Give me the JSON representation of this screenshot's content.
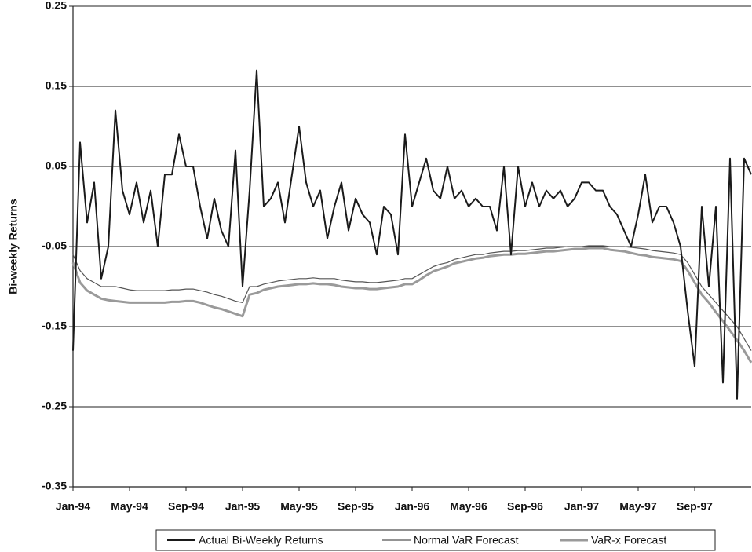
{
  "chart_data": {
    "type": "line",
    "y_label": "Bi-weekly Returns",
    "categories": [
      "Jan-94",
      null,
      null,
      null,
      null,
      null,
      null,
      null,
      "May-94",
      null,
      null,
      null,
      null,
      null,
      null,
      null,
      "Sep-94",
      null,
      null,
      null,
      null,
      null,
      null,
      null,
      "Jan-95",
      null,
      null,
      null,
      null,
      null,
      null,
      null,
      "May-95",
      null,
      null,
      null,
      null,
      null,
      null,
      null,
      "Sep-95",
      null,
      null,
      null,
      null,
      null,
      null,
      null,
      "Jan-96",
      null,
      null,
      null,
      null,
      null,
      null,
      null,
      "May-96",
      null,
      null,
      null,
      null,
      null,
      null,
      null,
      "Sep-96",
      null,
      null,
      null,
      null,
      null,
      null,
      null,
      "Jan-97",
      null,
      null,
      null,
      null,
      null,
      null,
      null,
      "May-97",
      null,
      null,
      null,
      null,
      null,
      null,
      null,
      "Sep-97",
      null,
      null,
      null,
      null,
      null,
      null,
      null,
      null
    ],
    "series": [
      {
        "name": "Actual Bi-Weekly Returns",
        "color": "#1a1a1a",
        "values": [
          -0.18,
          0.08,
          -0.02,
          0.03,
          -0.09,
          -0.05,
          0.12,
          0.02,
          -0.01,
          0.03,
          -0.02,
          0.02,
          -0.05,
          0.04,
          0.04,
          0.09,
          0.05,
          0.05,
          0.0,
          -0.04,
          0.01,
          -0.03,
          -0.05,
          0.07,
          -0.1,
          0.02,
          0.17,
          0.0,
          0.01,
          0.03,
          -0.02,
          0.04,
          0.1,
          0.03,
          0.0,
          0.02,
          -0.04,
          0.0,
          0.03,
          -0.03,
          0.01,
          -0.01,
          -0.02,
          -0.06,
          0.0,
          -0.01,
          -0.06,
          0.09,
          0.0,
          0.03,
          0.06,
          0.02,
          0.01,
          0.05,
          0.01,
          0.02,
          0.0,
          0.01,
          0.0,
          0.0,
          -0.03,
          0.05,
          -0.06,
          0.05,
          0.0,
          0.03,
          0.0,
          0.02,
          0.01,
          0.02,
          0.0,
          0.01,
          0.03,
          0.03,
          0.02,
          0.02,
          0.0,
          -0.01,
          -0.03,
          -0.05,
          -0.01,
          0.04,
          -0.02,
          0.0,
          0.0,
          -0.02,
          -0.05,
          -0.13,
          -0.2,
          0.0,
          -0.1,
          0.0,
          -0.22,
          0.06,
          -0.24,
          0.06,
          0.04
        ]
      },
      {
        "name": "Normal VaR Forecast",
        "color": "#555555",
        "values": [
          -0.06,
          -0.08,
          -0.09,
          -0.095,
          -0.1,
          -0.1,
          -0.1,
          -0.102,
          -0.104,
          -0.105,
          -0.105,
          -0.105,
          -0.105,
          -0.105,
          -0.104,
          -0.104,
          -0.103,
          -0.103,
          -0.105,
          -0.107,
          -0.11,
          -0.112,
          -0.115,
          -0.118,
          -0.12,
          -0.1,
          -0.1,
          -0.097,
          -0.095,
          -0.093,
          -0.092,
          -0.091,
          -0.09,
          -0.09,
          -0.089,
          -0.09,
          -0.09,
          -0.09,
          -0.092,
          -0.093,
          -0.094,
          -0.094,
          -0.095,
          -0.095,
          -0.094,
          -0.093,
          -0.092,
          -0.09,
          -0.09,
          -0.085,
          -0.08,
          -0.075,
          -0.072,
          -0.07,
          -0.066,
          -0.064,
          -0.062,
          -0.06,
          -0.06,
          -0.058,
          -0.057,
          -0.056,
          -0.056,
          -0.055,
          -0.055,
          -0.054,
          -0.053,
          -0.052,
          -0.052,
          -0.051,
          -0.05,
          -0.05,
          -0.05,
          -0.049,
          -0.049,
          -0.049,
          -0.05,
          -0.05,
          -0.05,
          -0.051,
          -0.052,
          -0.053,
          -0.055,
          -0.056,
          -0.057,
          -0.058,
          -0.06,
          -0.07,
          -0.085,
          -0.1,
          -0.11,
          -0.12,
          -0.13,
          -0.14,
          -0.15,
          -0.165,
          -0.18
        ]
      },
      {
        "name": "VaR-x Forecast",
        "color": "#9a9a9a",
        "values": [
          -0.07,
          -0.095,
          -0.105,
          -0.11,
          -0.115,
          -0.117,
          -0.118,
          -0.119,
          -0.12,
          -0.12,
          -0.12,
          -0.12,
          -0.12,
          -0.12,
          -0.119,
          -0.119,
          -0.118,
          -0.118,
          -0.12,
          -0.123,
          -0.126,
          -0.128,
          -0.131,
          -0.134,
          -0.137,
          -0.11,
          -0.108,
          -0.104,
          -0.102,
          -0.1,
          -0.099,
          -0.098,
          -0.097,
          -0.097,
          -0.096,
          -0.097,
          -0.097,
          -0.098,
          -0.1,
          -0.101,
          -0.102,
          -0.102,
          -0.103,
          -0.103,
          -0.102,
          -0.101,
          -0.1,
          -0.097,
          -0.097,
          -0.092,
          -0.086,
          -0.081,
          -0.078,
          -0.075,
          -0.071,
          -0.069,
          -0.067,
          -0.065,
          -0.064,
          -0.062,
          -0.061,
          -0.06,
          -0.06,
          -0.059,
          -0.059,
          -0.058,
          -0.057,
          -0.056,
          -0.056,
          -0.055,
          -0.054,
          -0.053,
          -0.053,
          -0.052,
          -0.052,
          -0.052,
          -0.054,
          -0.055,
          -0.056,
          -0.058,
          -0.06,
          -0.061,
          -0.063,
          -0.064,
          -0.065,
          -0.066,
          -0.068,
          -0.08,
          -0.095,
          -0.11,
          -0.12,
          -0.132,
          -0.143,
          -0.155,
          -0.167,
          -0.18,
          -0.195
        ]
      }
    ],
    "ylim": [
      -0.35,
      0.25
    ],
    "yticks": [
      -0.35,
      -0.25,
      -0.15,
      -0.05,
      0.05,
      0.15,
      0.25
    ],
    "grid": true,
    "legend": "bottom"
  }
}
